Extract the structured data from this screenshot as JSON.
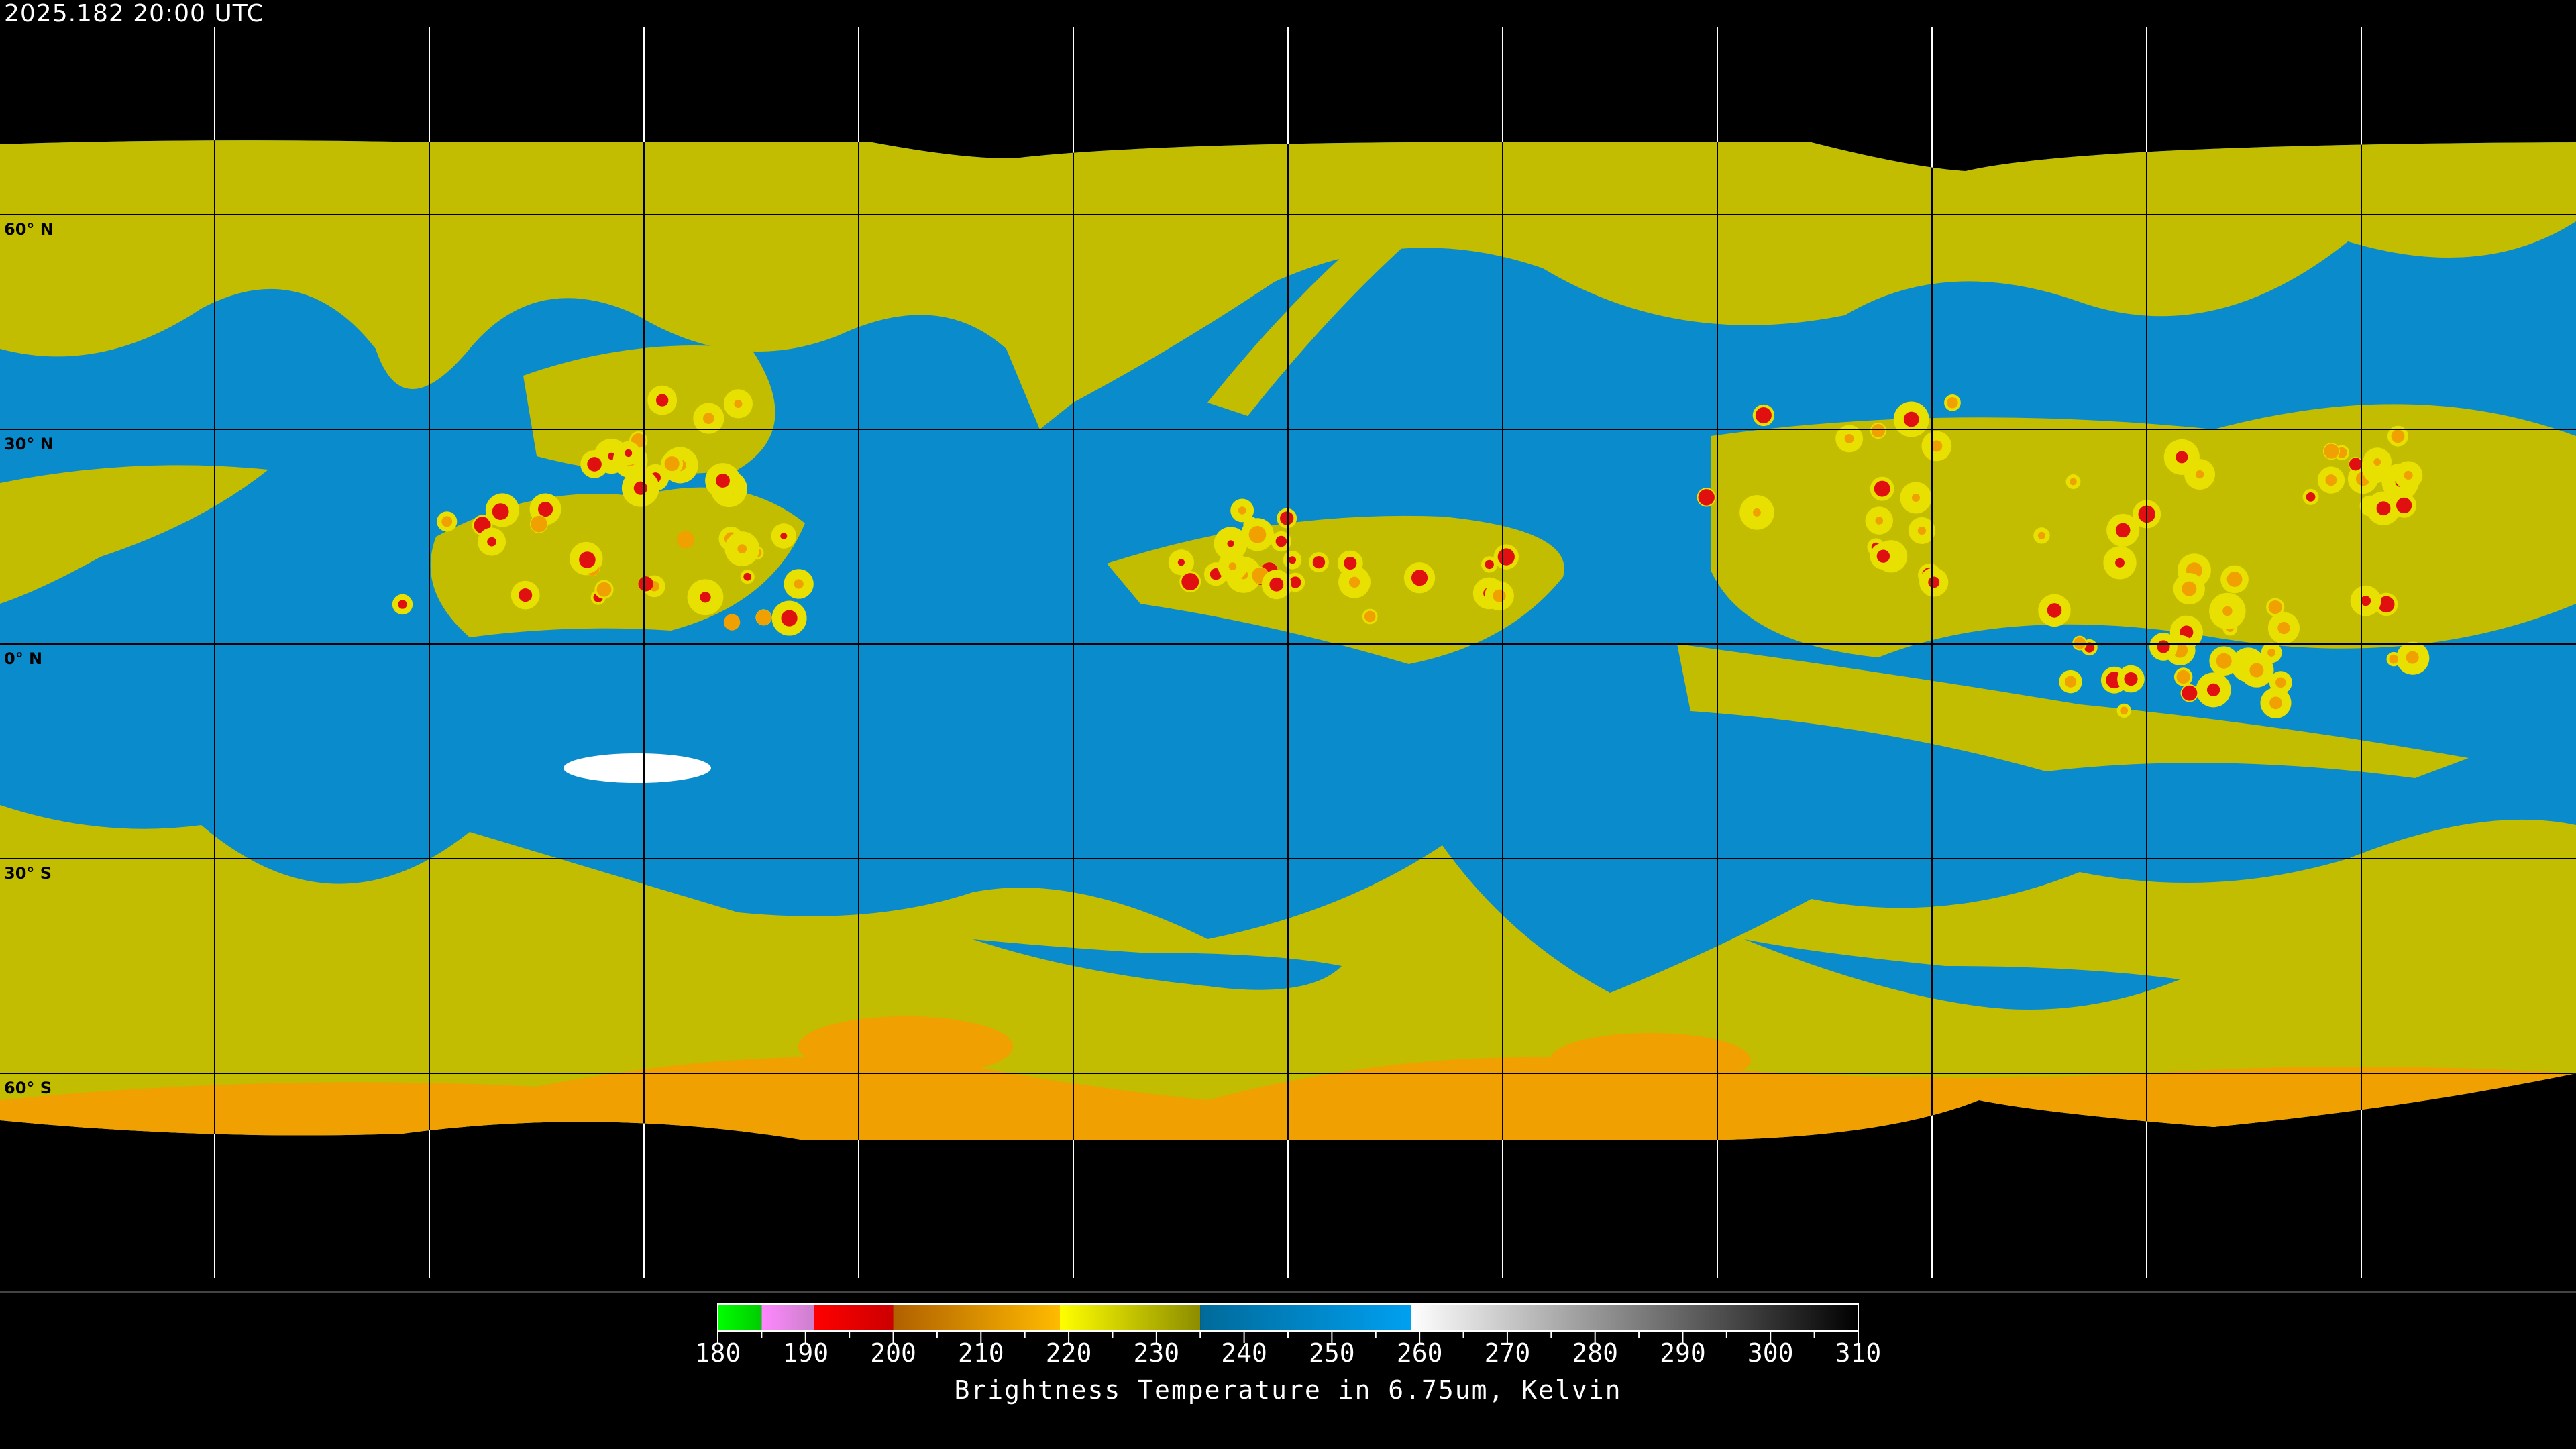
{
  "header": {
    "timestamp": "2025.182 20:00 UTC"
  },
  "map": {
    "projection": "equirectangular",
    "gridlines_longitude_step_deg": 30,
    "gridlines_latitude_step_deg": 30,
    "latitude_labels": [
      "60° N",
      "30° N",
      "0° N",
      "30° S",
      "60° S"
    ],
    "latitude_values": [
      60,
      30,
      0,
      -30,
      -60
    ],
    "colors": {
      "background": "#000000",
      "moist_blue": "#0a8bcc",
      "dry_yellow": "#c2bd00",
      "cold_orange": "#f0a000",
      "deep_red": "#e01010",
      "gridline_on_data": "#000000",
      "gridline_off_data": "#ffffff"
    }
  },
  "colorbar": {
    "title": "Brightness Temperature in 6.75um, Kelvin",
    "min": 180,
    "max": 310,
    "tick_labels": [
      "180",
      "190",
      "200",
      "210",
      "220",
      "230",
      "240",
      "250",
      "260",
      "270",
      "280",
      "290",
      "300",
      "310"
    ],
    "segments": [
      {
        "from": 180,
        "to": 185,
        "c0": "#00ff00",
        "c1": "#00cc00"
      },
      {
        "from": 185,
        "to": 191,
        "c0": "#ff88ff",
        "c1": "#cc80cc"
      },
      {
        "from": 191,
        "to": 200,
        "c0": "#ff0000",
        "c1": "#cc0000"
      },
      {
        "from": 200,
        "to": 219,
        "c0": "#b06000",
        "c1": "#ffbb00"
      },
      {
        "from": 219,
        "to": 235,
        "c0": "#ffff00",
        "c1": "#8c8c00"
      },
      {
        "from": 235,
        "to": 259,
        "c0": "#006a9a",
        "c1": "#00a0f0"
      },
      {
        "from": 259,
        "to": 310,
        "c0": "#ffffff",
        "c1": "#000000"
      }
    ]
  }
}
